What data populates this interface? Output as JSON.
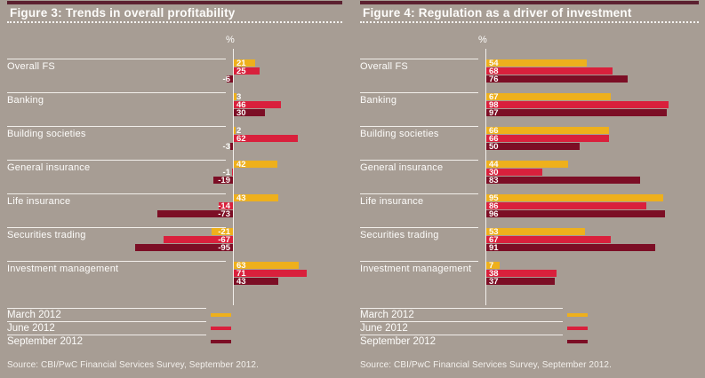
{
  "source_note": "Source: CBI/PwC Financial Services Survey, September 2012.",
  "legend": {
    "items": [
      "March 2012",
      "June 2012",
      "September 2012"
    ]
  },
  "colors": {
    "background": "#a79d94",
    "title_strip": "#5c2130",
    "rule_white": "#f2efeb",
    "text_white": "#fdfcfa",
    "march_yellow": "#eeb01c",
    "june_red": "#d9203c",
    "september_maroon": "#7c0e25"
  },
  "chart_data": [
    {
      "type": "bar",
      "orientation": "horizontal",
      "title": "Figure 3: Trends in overall profitability",
      "ylabel": "%",
      "axis_range": [
        -95,
        71
      ],
      "grid": false,
      "legend_position": "bottom",
      "categories": [
        "Overall FS",
        "Banking",
        "Building societies",
        "General insurance",
        "Life insurance",
        "Securities trading",
        "Investment management"
      ],
      "series": [
        {
          "name": "March 2012",
          "color": "#eeb01c",
          "values": [
            21,
            3,
            2,
            42,
            43,
            -21,
            63
          ]
        },
        {
          "name": "June 2012",
          "color": "#d9203c",
          "values": [
            25,
            46,
            62,
            -1,
            -14,
            -67,
            71
          ]
        },
        {
          "name": "September 2012",
          "color": "#7c0e25",
          "values": [
            -6,
            30,
            -3,
            -19,
            -73,
            -95,
            43
          ]
        }
      ]
    },
    {
      "type": "bar",
      "orientation": "horizontal",
      "title": "Figure 4: Regulation as a driver of investment",
      "ylabel": "%",
      "axis_range": [
        0,
        98
      ],
      "grid": false,
      "legend_position": "bottom",
      "categories": [
        "Overall FS",
        "Banking",
        "Building societies",
        "General insurance",
        "Life insurance",
        "Securities trading",
        "Investment management"
      ],
      "series": [
        {
          "name": "March 2012",
          "color": "#eeb01c",
          "values": [
            54,
            67,
            66,
            44,
            95,
            53,
            7
          ]
        },
        {
          "name": "June 2012",
          "color": "#d9203c",
          "values": [
            68,
            98,
            66,
            30,
            86,
            67,
            38
          ]
        },
        {
          "name": "September 2012",
          "color": "#7c0e25",
          "values": [
            76,
            97,
            50,
            83,
            96,
            91,
            37
          ]
        }
      ]
    }
  ]
}
